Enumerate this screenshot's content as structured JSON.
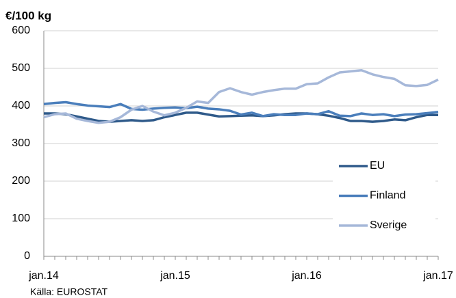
{
  "chart_data": {
    "type": "line",
    "title": "€/100 kg",
    "source": "Källa: EUROSTAT",
    "categories": [
      "jan.14",
      null,
      null,
      null,
      null,
      null,
      null,
      null,
      null,
      null,
      null,
      null,
      "jan.15",
      null,
      null,
      null,
      null,
      null,
      null,
      null,
      null,
      null,
      null,
      null,
      "jan.16",
      null,
      null,
      null,
      null,
      null,
      null,
      null,
      null,
      null,
      null,
      null,
      "jan.17"
    ],
    "series": [
      {
        "name": "EU",
        "color": "#2f5a8a",
        "values": [
          380,
          380,
          378,
          372,
          366,
          360,
          358,
          360,
          362,
          360,
          362,
          370,
          376,
          382,
          382,
          377,
          372,
          373,
          374,
          375,
          373,
          375,
          378,
          380,
          380,
          378,
          374,
          368,
          360,
          360,
          358,
          360,
          364,
          362,
          370,
          376,
          376
        ]
      },
      {
        "name": "Finland",
        "color": "#4a7ebb",
        "values": [
          405,
          408,
          410,
          405,
          401,
          399,
          397,
          405,
          392,
          390,
          393,
          395,
          396,
          394,
          398,
          393,
          391,
          387,
          377,
          382,
          373,
          378,
          376,
          376,
          380,
          378,
          386,
          374,
          373,
          380,
          376,
          378,
          373,
          377,
          378,
          381,
          384
        ]
      },
      {
        "name": "Sverige",
        "color": "#a6b8d9",
        "values": [
          370,
          378,
          380,
          366,
          360,
          355,
          358,
          370,
          390,
          400,
          385,
          375,
          382,
          395,
          412,
          408,
          437,
          447,
          437,
          430,
          437,
          442,
          446,
          446,
          458,
          460,
          476,
          489,
          492,
          495,
          484,
          477,
          472,
          455,
          453,
          456,
          470
        ]
      }
    ],
    "ylim": [
      0,
      600
    ],
    "yticks": [
      0,
      100,
      200,
      300,
      400,
      500,
      600
    ],
    "grid": true
  }
}
